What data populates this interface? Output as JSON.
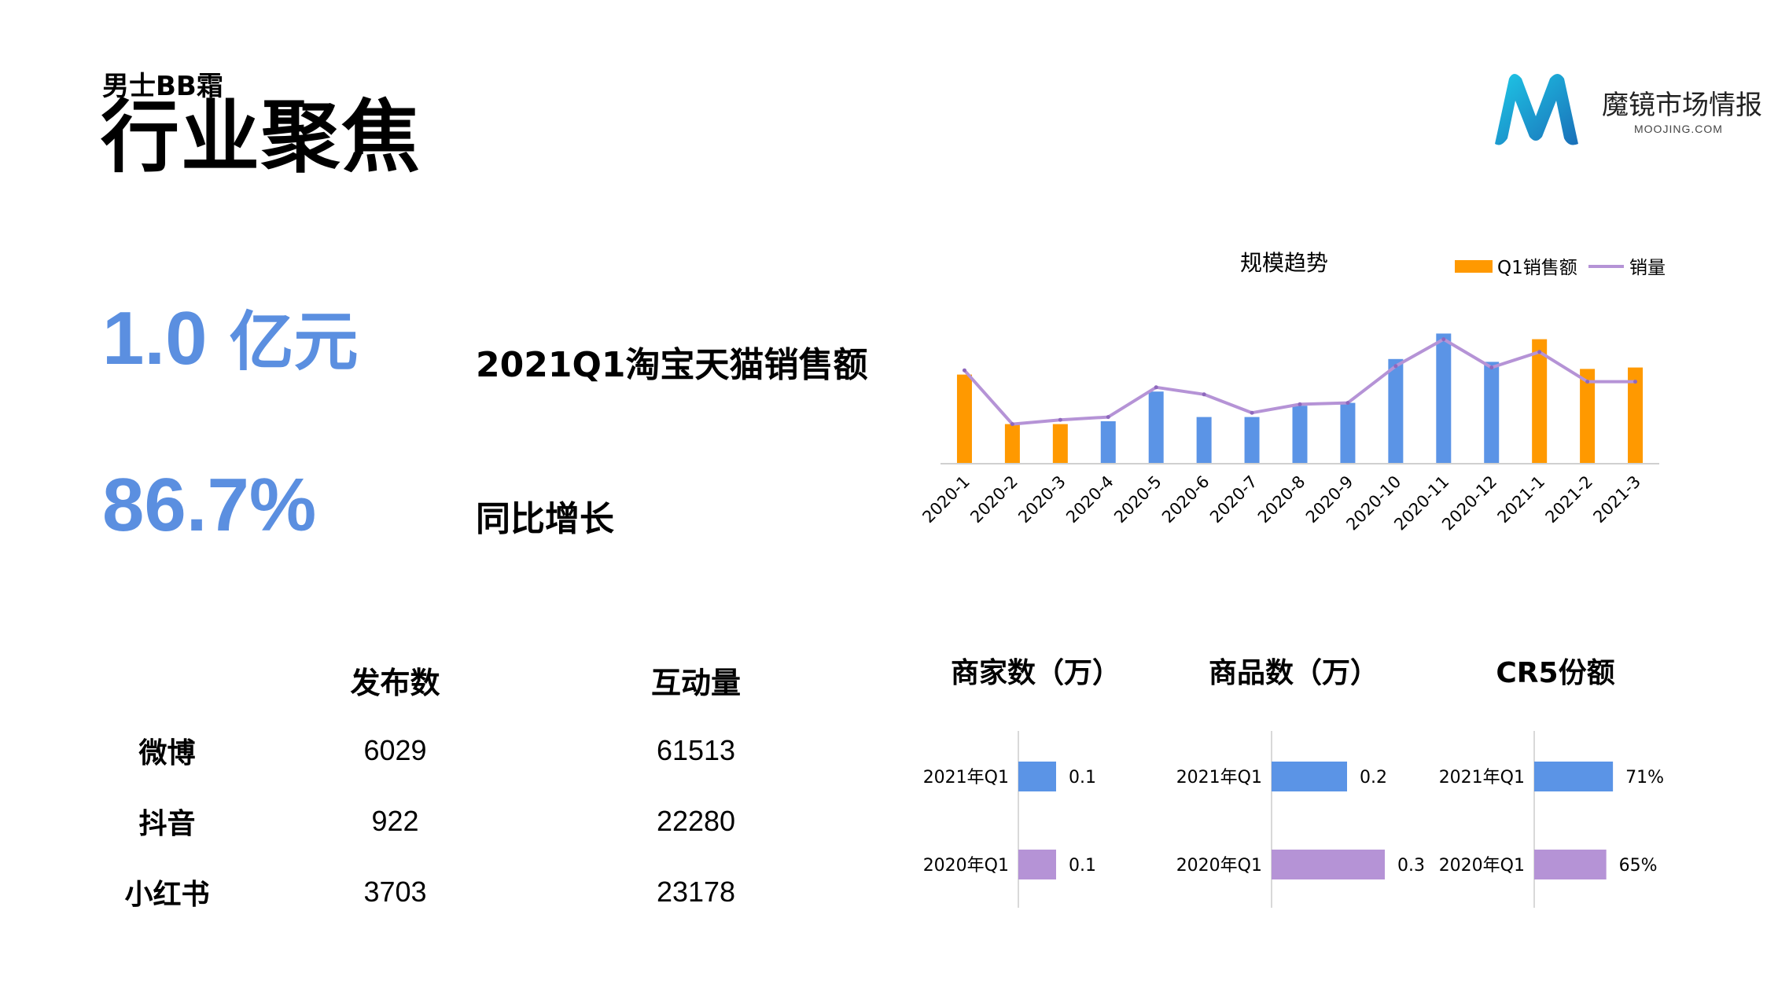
{
  "header": {
    "subtitle": "男士BB霜",
    "title": "行业聚焦"
  },
  "logo": {
    "name": "魔镜市场情报",
    "domain": "MOOJING.COM",
    "colors": [
      "#1fb6d9",
      "#2a6fc2"
    ]
  },
  "metrics": [
    {
      "value": "1.0",
      "unit": "亿元",
      "label": "2021Q1淘宝天猫销售额"
    },
    {
      "value": "86.7%",
      "unit": "",
      "label": "同比增长"
    }
  ],
  "colors": {
    "accent": "#5b8fe0",
    "orange": "#ff9900",
    "blue": "#5b94e6",
    "purple": "#b593d6"
  },
  "social": {
    "headers": [
      "",
      "发布数",
      "互动量"
    ],
    "rows": [
      {
        "platform": "微博",
        "posts": "6029",
        "interactions": "61513"
      },
      {
        "platform": "抖音",
        "posts": "922",
        "interactions": "22280"
      },
      {
        "platform": "小红书",
        "posts": "3703",
        "interactions": "23178"
      }
    ]
  },
  "chart_data": [
    {
      "type": "bar",
      "title": "规模趋势",
      "categories": [
        "2020-1",
        "2020-2",
        "2020-3",
        "2020-4",
        "2020-5",
        "2020-6",
        "2020-7",
        "2020-8",
        "2020-9",
        "2020-10",
        "2020-11",
        "2020-12",
        "2021-1",
        "2021-2",
        "2021-3"
      ],
      "series": [
        {
          "name": "Q1销售额",
          "kind": "bar",
          "values": [
            63,
            28,
            28,
            30,
            51,
            33,
            33,
            41,
            43,
            74,
            92,
            72,
            88,
            67,
            68
          ],
          "highlight": [
            true,
            true,
            true,
            false,
            false,
            false,
            false,
            false,
            false,
            false,
            false,
            false,
            true,
            true,
            true
          ]
        },
        {
          "name": "销量",
          "kind": "line",
          "values": [
            66,
            28,
            31,
            33,
            54,
            49,
            36,
            42,
            43,
            69,
            88,
            68,
            79,
            58,
            58
          ]
        }
      ],
      "ylim": [
        0,
        100
      ],
      "legend": "top-right",
      "grid": false
    },
    {
      "type": "bar",
      "orientation": "horizontal",
      "title": "商家数（万）",
      "categories": [
        "2021年Q1",
        "2020年Q1"
      ],
      "values": [
        0.1,
        0.1
      ],
      "labels": [
        "0.1",
        "0.1"
      ],
      "xlim": [
        0,
        0.3
      ]
    },
    {
      "type": "bar",
      "orientation": "horizontal",
      "title": "商品数（万）",
      "categories": [
        "2021年Q1",
        "2020年Q1"
      ],
      "values": [
        0.2,
        0.3
      ],
      "labels": [
        "0.2",
        "0.3"
      ],
      "xlim": [
        0,
        0.3
      ]
    },
    {
      "type": "bar",
      "orientation": "horizontal",
      "title": "CR5份额",
      "categories": [
        "2021年Q1",
        "2020年Q1"
      ],
      "values": [
        71,
        65
      ],
      "labels": [
        "71%",
        "65%"
      ],
      "xlim": [
        0,
        100
      ]
    }
  ]
}
